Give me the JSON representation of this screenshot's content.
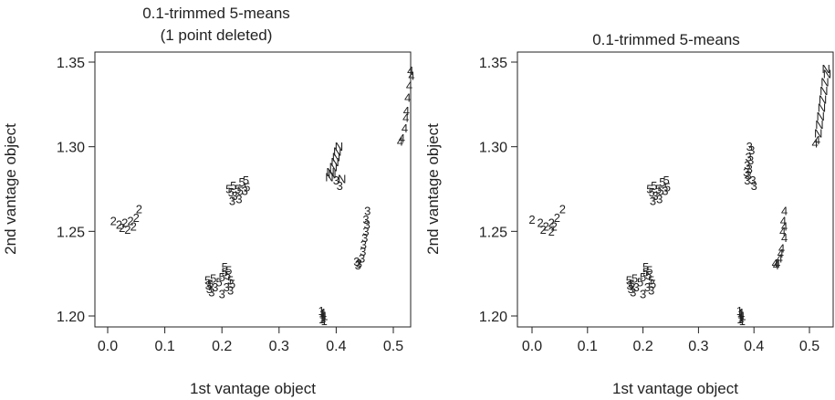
{
  "chart_data": [
    {
      "type": "scatter",
      "title": "0.1-trimmed 5-means",
      "subtitle": "(1 point deleted)",
      "xlabel": "1st vantage object",
      "ylabel": "2nd vantage object",
      "xlim": [
        -0.01,
        0.545
      ],
      "ylim": [
        1.193,
        1.352
      ],
      "xticks": [
        "0.0",
        "0.1",
        "0.2",
        "0.3",
        "0.4",
        "0.5"
      ],
      "yticks": [
        "1.20",
        "1.25",
        "1.30",
        "1.35"
      ],
      "marker": "cluster label",
      "points": [
        {
          "x": 0.01,
          "y": 1.256,
          "label": "2"
        },
        {
          "x": 0.02,
          "y": 1.254,
          "label": "2"
        },
        {
          "x": 0.03,
          "y": 1.255,
          "label": "2"
        },
        {
          "x": 0.025,
          "y": 1.252,
          "label": "2"
        },
        {
          "x": 0.04,
          "y": 1.256,
          "label": "2"
        },
        {
          "x": 0.045,
          "y": 1.253,
          "label": "2"
        },
        {
          "x": 0.05,
          "y": 1.258,
          "label": "2"
        },
        {
          "x": 0.055,
          "y": 1.263,
          "label": "2"
        },
        {
          "x": 0.035,
          "y": 1.251,
          "label": "2"
        },
        {
          "x": 0.212,
          "y": 1.275,
          "label": "5"
        },
        {
          "x": 0.22,
          "y": 1.277,
          "label": "5"
        },
        {
          "x": 0.228,
          "y": 1.275,
          "label": "5"
        },
        {
          "x": 0.235,
          "y": 1.279,
          "label": "5"
        },
        {
          "x": 0.242,
          "y": 1.28,
          "label": "5"
        },
        {
          "x": 0.216,
          "y": 1.273,
          "label": "5"
        },
        {
          "x": 0.232,
          "y": 1.274,
          "label": "5"
        },
        {
          "x": 0.222,
          "y": 1.271,
          "label": "3"
        },
        {
          "x": 0.23,
          "y": 1.269,
          "label": "3"
        },
        {
          "x": 0.218,
          "y": 1.268,
          "label": "3"
        },
        {
          "x": 0.24,
          "y": 1.274,
          "label": "3"
        },
        {
          "x": 0.244,
          "y": 1.276,
          "label": "5"
        },
        {
          "x": 0.175,
          "y": 1.221,
          "label": "5"
        },
        {
          "x": 0.18,
          "y": 1.219,
          "label": "5"
        },
        {
          "x": 0.185,
          "y": 1.222,
          "label": "5"
        },
        {
          "x": 0.178,
          "y": 1.216,
          "label": "3"
        },
        {
          "x": 0.182,
          "y": 1.214,
          "label": "3"
        },
        {
          "x": 0.176,
          "y": 1.218,
          "label": "3"
        },
        {
          "x": 0.188,
          "y": 1.217,
          "label": "3"
        },
        {
          "x": 0.195,
          "y": 1.22,
          "label": "5"
        },
        {
          "x": 0.2,
          "y": 1.223,
          "label": "5"
        },
        {
          "x": 0.205,
          "y": 1.226,
          "label": "5"
        },
        {
          "x": 0.21,
          "y": 1.224,
          "label": "5"
        },
        {
          "x": 0.215,
          "y": 1.221,
          "label": "5"
        },
        {
          "x": 0.212,
          "y": 1.227,
          "label": "5"
        },
        {
          "x": 0.208,
          "y": 1.217,
          "label": "3"
        },
        {
          "x": 0.215,
          "y": 1.215,
          "label": "3"
        },
        {
          "x": 0.2,
          "y": 1.213,
          "label": "3"
        },
        {
          "x": 0.205,
          "y": 1.229,
          "label": "5"
        },
        {
          "x": 0.218,
          "y": 1.219,
          "label": "5"
        },
        {
          "x": 0.374,
          "y": 1.203,
          "label": "1"
        },
        {
          "x": 0.376,
          "y": 1.201,
          "label": "1"
        },
        {
          "x": 0.378,
          "y": 1.202,
          "label": "1"
        },
        {
          "x": 0.38,
          "y": 1.2,
          "label": "1"
        },
        {
          "x": 0.377,
          "y": 1.199,
          "label": "1"
        },
        {
          "x": 0.379,
          "y": 1.197,
          "label": "1"
        },
        {
          "x": 0.375,
          "y": 1.198,
          "label": "1"
        },
        {
          "x": 0.39,
          "y": 1.285,
          "label": "N"
        },
        {
          "x": 0.395,
          "y": 1.288,
          "label": "N"
        },
        {
          "x": 0.398,
          "y": 1.291,
          "label": "N"
        },
        {
          "x": 0.4,
          "y": 1.294,
          "label": "N"
        },
        {
          "x": 0.402,
          "y": 1.297,
          "label": "N"
        },
        {
          "x": 0.405,
          "y": 1.3,
          "label": "N"
        },
        {
          "x": 0.388,
          "y": 1.282,
          "label": "N"
        },
        {
          "x": 0.393,
          "y": 1.284,
          "label": "N"
        },
        {
          "x": 0.41,
          "y": 1.281,
          "label": "N"
        },
        {
          "x": 0.4,
          "y": 1.28,
          "label": "3"
        },
        {
          "x": 0.406,
          "y": 1.277,
          "label": "3"
        },
        {
          "x": 0.455,
          "y": 1.262,
          "label": "3"
        },
        {
          "x": 0.452,
          "y": 1.257,
          "label": "3"
        },
        {
          "x": 0.454,
          "y": 1.254,
          "label": "3"
        },
        {
          "x": 0.452,
          "y": 1.25,
          "label": "3"
        },
        {
          "x": 0.45,
          "y": 1.246,
          "label": "3"
        },
        {
          "x": 0.448,
          "y": 1.242,
          "label": "3"
        },
        {
          "x": 0.447,
          "y": 1.238,
          "label": "3"
        },
        {
          "x": 0.445,
          "y": 1.234,
          "label": "3"
        },
        {
          "x": 0.44,
          "y": 1.231,
          "label": "3"
        },
        {
          "x": 0.436,
          "y": 1.232,
          "label": "3"
        },
        {
          "x": 0.438,
          "y": 1.23,
          "label": "3"
        },
        {
          "x": 0.53,
          "y": 1.345,
          "label": "4"
        },
        {
          "x": 0.532,
          "y": 1.342,
          "label": "4"
        },
        {
          "x": 0.528,
          "y": 1.336,
          "label": "4"
        },
        {
          "x": 0.525,
          "y": 1.329,
          "label": "4"
        },
        {
          "x": 0.523,
          "y": 1.321,
          "label": "4"
        },
        {
          "x": 0.522,
          "y": 1.317,
          "label": "4"
        },
        {
          "x": 0.52,
          "y": 1.311,
          "label": "4"
        },
        {
          "x": 0.515,
          "y": 1.305,
          "label": "4"
        },
        {
          "x": 0.512,
          "y": 1.303,
          "label": "4"
        }
      ]
    },
    {
      "type": "scatter",
      "title": "0.1-trimmed 5-means",
      "subtitle": "",
      "xlabel": "1st vantage object",
      "ylabel": "2nd vantage object",
      "xlim": [
        -0.01,
        0.545
      ],
      "ylim": [
        1.193,
        1.352
      ],
      "xticks": [
        "0.0",
        "0.1",
        "0.2",
        "0.3",
        "0.4",
        "0.5"
      ],
      "yticks": [
        "1.20",
        "1.25",
        "1.30",
        "1.35"
      ],
      "marker": "cluster label",
      "points": [
        {
          "x": 0.0,
          "y": 1.257,
          "label": "2"
        },
        {
          "x": 0.015,
          "y": 1.255,
          "label": "2"
        },
        {
          "x": 0.025,
          "y": 1.253,
          "label": "2"
        },
        {
          "x": 0.02,
          "y": 1.251,
          "label": "2"
        },
        {
          "x": 0.035,
          "y": 1.255,
          "label": "2"
        },
        {
          "x": 0.04,
          "y": 1.253,
          "label": "2"
        },
        {
          "x": 0.045,
          "y": 1.258,
          "label": "2"
        },
        {
          "x": 0.055,
          "y": 1.263,
          "label": "2"
        },
        {
          "x": 0.035,
          "y": 1.25,
          "label": "2"
        },
        {
          "x": 0.212,
          "y": 1.275,
          "label": "5"
        },
        {
          "x": 0.22,
          "y": 1.277,
          "label": "5"
        },
        {
          "x": 0.228,
          "y": 1.275,
          "label": "5"
        },
        {
          "x": 0.235,
          "y": 1.279,
          "label": "5"
        },
        {
          "x": 0.242,
          "y": 1.28,
          "label": "5"
        },
        {
          "x": 0.216,
          "y": 1.273,
          "label": "5"
        },
        {
          "x": 0.232,
          "y": 1.274,
          "label": "5"
        },
        {
          "x": 0.222,
          "y": 1.271,
          "label": "3"
        },
        {
          "x": 0.23,
          "y": 1.269,
          "label": "3"
        },
        {
          "x": 0.218,
          "y": 1.268,
          "label": "3"
        },
        {
          "x": 0.24,
          "y": 1.274,
          "label": "3"
        },
        {
          "x": 0.244,
          "y": 1.276,
          "label": "5"
        },
        {
          "x": 0.175,
          "y": 1.221,
          "label": "5"
        },
        {
          "x": 0.18,
          "y": 1.219,
          "label": "5"
        },
        {
          "x": 0.185,
          "y": 1.222,
          "label": "5"
        },
        {
          "x": 0.178,
          "y": 1.216,
          "label": "3"
        },
        {
          "x": 0.182,
          "y": 1.214,
          "label": "3"
        },
        {
          "x": 0.176,
          "y": 1.218,
          "label": "3"
        },
        {
          "x": 0.188,
          "y": 1.217,
          "label": "3"
        },
        {
          "x": 0.195,
          "y": 1.22,
          "label": "5"
        },
        {
          "x": 0.2,
          "y": 1.223,
          "label": "5"
        },
        {
          "x": 0.205,
          "y": 1.226,
          "label": "5"
        },
        {
          "x": 0.21,
          "y": 1.224,
          "label": "5"
        },
        {
          "x": 0.215,
          "y": 1.221,
          "label": "5"
        },
        {
          "x": 0.212,
          "y": 1.227,
          "label": "5"
        },
        {
          "x": 0.208,
          "y": 1.217,
          "label": "3"
        },
        {
          "x": 0.215,
          "y": 1.215,
          "label": "3"
        },
        {
          "x": 0.2,
          "y": 1.213,
          "label": "3"
        },
        {
          "x": 0.205,
          "y": 1.229,
          "label": "5"
        },
        {
          "x": 0.218,
          "y": 1.219,
          "label": "5"
        },
        {
          "x": 0.374,
          "y": 1.203,
          "label": "1"
        },
        {
          "x": 0.376,
          "y": 1.201,
          "label": "1"
        },
        {
          "x": 0.378,
          "y": 1.202,
          "label": "1"
        },
        {
          "x": 0.38,
          "y": 1.2,
          "label": "1"
        },
        {
          "x": 0.377,
          "y": 1.199,
          "label": "1"
        },
        {
          "x": 0.379,
          "y": 1.197,
          "label": "1"
        },
        {
          "x": 0.375,
          "y": 1.198,
          "label": "1"
        },
        {
          "x": 0.392,
          "y": 1.3,
          "label": "3"
        },
        {
          "x": 0.396,
          "y": 1.298,
          "label": "3"
        },
        {
          "x": 0.39,
          "y": 1.294,
          "label": "3"
        },
        {
          "x": 0.394,
          "y": 1.292,
          "label": "3"
        },
        {
          "x": 0.388,
          "y": 1.289,
          "label": "3"
        },
        {
          "x": 0.392,
          "y": 1.287,
          "label": "3"
        },
        {
          "x": 0.386,
          "y": 1.285,
          "label": "3"
        },
        {
          "x": 0.39,
          "y": 1.283,
          "label": "3"
        },
        {
          "x": 0.388,
          "y": 1.28,
          "label": "3"
        },
        {
          "x": 0.398,
          "y": 1.28,
          "label": "3"
        },
        {
          "x": 0.4,
          "y": 1.277,
          "label": "3"
        },
        {
          "x": 0.455,
          "y": 1.262,
          "label": "4"
        },
        {
          "x": 0.453,
          "y": 1.256,
          "label": "4"
        },
        {
          "x": 0.455,
          "y": 1.253,
          "label": "4"
        },
        {
          "x": 0.452,
          "y": 1.25,
          "label": "4"
        },
        {
          "x": 0.455,
          "y": 1.246,
          "label": "4"
        },
        {
          "x": 0.45,
          "y": 1.24,
          "label": "4"
        },
        {
          "x": 0.448,
          "y": 1.237,
          "label": "4"
        },
        {
          "x": 0.446,
          "y": 1.234,
          "label": "4"
        },
        {
          "x": 0.442,
          "y": 1.231,
          "label": "4"
        },
        {
          "x": 0.438,
          "y": 1.231,
          "label": "4"
        },
        {
          "x": 0.44,
          "y": 1.23,
          "label": "4"
        },
        {
          "x": 0.53,
          "y": 1.346,
          "label": "N"
        },
        {
          "x": 0.532,
          "y": 1.343,
          "label": "N"
        },
        {
          "x": 0.528,
          "y": 1.338,
          "label": "N"
        },
        {
          "x": 0.526,
          "y": 1.333,
          "label": "N"
        },
        {
          "x": 0.524,
          "y": 1.328,
          "label": "N"
        },
        {
          "x": 0.522,
          "y": 1.323,
          "label": "N"
        },
        {
          "x": 0.52,
          "y": 1.318,
          "label": "N"
        },
        {
          "x": 0.518,
          "y": 1.313,
          "label": "N"
        },
        {
          "x": 0.516,
          "y": 1.308,
          "label": "N"
        },
        {
          "x": 0.514,
          "y": 1.304,
          "label": "4"
        },
        {
          "x": 0.51,
          "y": 1.302,
          "label": "4"
        }
      ]
    }
  ]
}
